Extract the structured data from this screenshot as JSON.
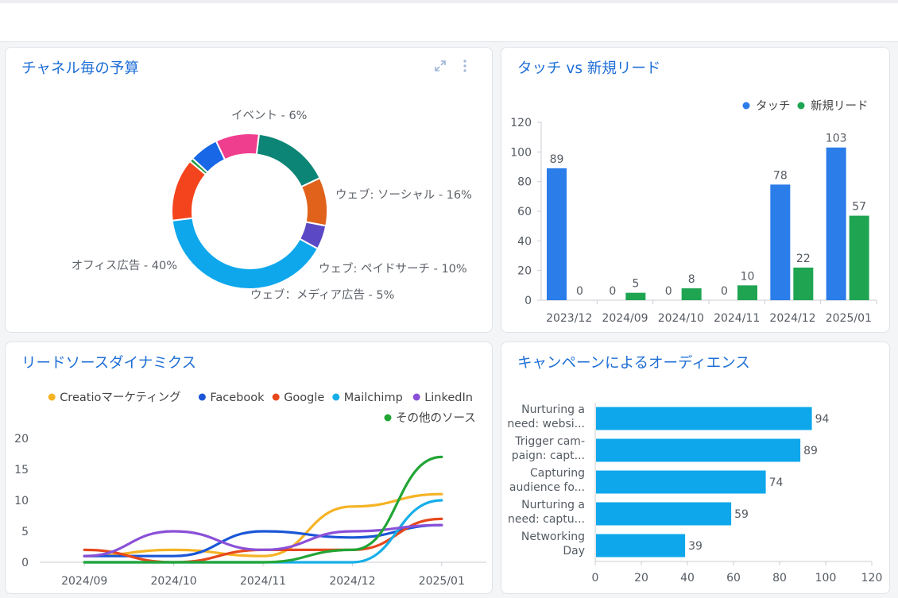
{
  "cards": {
    "budget": {
      "title": "チャネル毎の予算"
    },
    "touches": {
      "title": "タッチ vs 新規リード"
    },
    "leadsource": {
      "title": "リードソースダイナミクス"
    },
    "audience": {
      "title": "キャンペーンによるオーディエンス"
    }
  },
  "icons": {
    "expand": "expand-icon",
    "menu": "kebab-menu-icon"
  },
  "chart_data": [
    {
      "id": "budget",
      "type": "pie",
      "title": "チャネル毎の予算",
      "donut": true,
      "slices": [
        {
          "name": "ウェブ: ソーシャル",
          "value": 16,
          "label": "ウェブ: ソーシャル - 16%",
          "color": "#0c8576"
        },
        {
          "name": "ウェブ: ペイドサーチ",
          "value": 10,
          "label": "ウェブ: ペイドサーチ - 10%",
          "color": "#e0621b"
        },
        {
          "name": "ウェブ：メディア広告",
          "value": 5,
          "label": "ウェブ：メディア広告 - 5%",
          "color": "#5a48c4"
        },
        {
          "name": "オフィス広告",
          "value": 40,
          "label": "オフィス広告 - 40%",
          "color": "#0ea7ec"
        },
        {
          "name": "",
          "value": 13,
          "label": "",
          "color": "#f4441e"
        },
        {
          "name": "",
          "value": 0.8,
          "label": "",
          "color": "#1e9e40"
        },
        {
          "name": "イベント",
          "value": 6,
          "label": "イベント - 6%",
          "color": "#1767e6"
        },
        {
          "name": "",
          "value": 9,
          "label": "",
          "color": "#f03e8e"
        }
      ]
    },
    {
      "id": "touches",
      "type": "bar",
      "categories": [
        "2023/12",
        "2024/09",
        "2024/10",
        "2024/11",
        "2024/12",
        "2025/01"
      ],
      "series": [
        {
          "name": "タッチ",
          "color": "#2b7de9",
          "values": [
            89,
            0,
            0,
            0,
            78,
            103
          ]
        },
        {
          "name": "新規リード",
          "color": "#1fa552",
          "values": [
            0,
            5,
            8,
            10,
            22,
            57
          ]
        }
      ],
      "ylim": [
        0,
        120
      ],
      "yticks": [
        0,
        20,
        40,
        60,
        80,
        100,
        120
      ],
      "legend": "top-right",
      "grid": false
    },
    {
      "id": "leadsource",
      "type": "line",
      "x": [
        "2024/09",
        "2024/10",
        "2024/11",
        "2024/12",
        "2025/01"
      ],
      "series": [
        {
          "name": "Creatioマーケティング",
          "color": "#f5b324",
          "values": [
            1,
            2,
            1,
            9,
            11
          ]
        },
        {
          "name": "Facebook",
          "color": "#1a56d6",
          "values": [
            1,
            1,
            5,
            4,
            6
          ]
        },
        {
          "name": "Google",
          "color": "#e6481c",
          "values": [
            2,
            0,
            2,
            2,
            7
          ]
        },
        {
          "name": "Mailchimp",
          "color": "#16aee8",
          "values": [
            0,
            0,
            0,
            0,
            10
          ]
        },
        {
          "name": "LinkedIn",
          "color": "#8a50d8",
          "values": [
            1,
            5,
            2,
            5,
            6
          ]
        },
        {
          "name": "その他のソース",
          "color": "#22a535",
          "values": [
            0,
            0,
            0,
            2,
            17
          ]
        }
      ],
      "ylim": [
        0,
        20
      ],
      "yticks": [
        0,
        5,
        10,
        15,
        20
      ],
      "legend": "top",
      "grid": false
    },
    {
      "id": "audience",
      "type": "bar",
      "orientation": "horizontal",
      "categories": [
        [
          "Nurturing a",
          "need: websi..."
        ],
        [
          "Trigger cam-",
          "paign: capt..."
        ],
        [
          "Capturing",
          "audience fo..."
        ],
        [
          "Nurturing a",
          "need: captu..."
        ],
        [
          "Networking",
          "Day"
        ]
      ],
      "values": [
        94,
        89,
        74,
        59,
        39
      ],
      "color": "#0ea7ec",
      "xlim": [
        0,
        120
      ],
      "xticks": [
        0,
        20,
        40,
        60,
        80,
        100,
        120
      ],
      "grid": false
    }
  ]
}
